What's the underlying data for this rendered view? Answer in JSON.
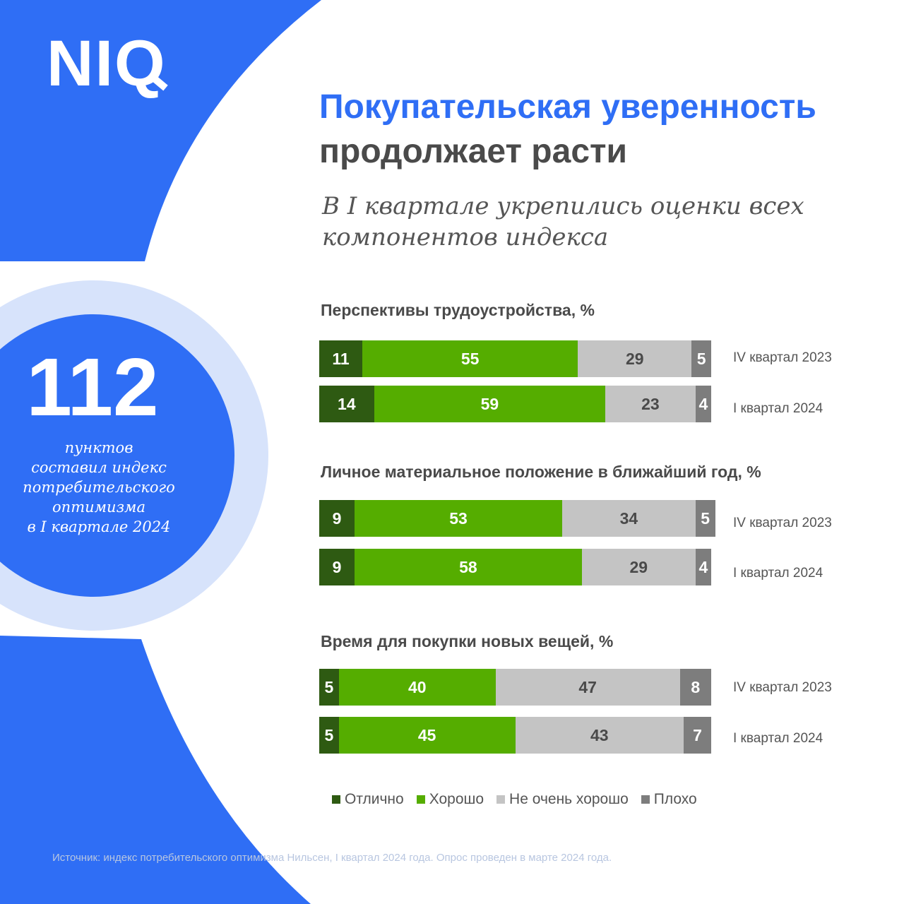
{
  "brand": {
    "logo": "NIQ"
  },
  "colors": {
    "brand_blue": "#2f6ef5",
    "ring_light": "#d7e3fb",
    "excellent": "#2e5a12",
    "good": "#55ad00",
    "not_very_good": "#c4c4c4",
    "bad": "#7d7d7d"
  },
  "highlight": {
    "value": "112",
    "caption": [
      "пунктов",
      "составил индекс",
      "потребительского",
      "оптимизма",
      "в I квартале 2024"
    ]
  },
  "header": {
    "title_line1": "Покупательская уверенность",
    "title_line2": "продолжает расти",
    "subtitle_line1": "В I квартале укрепились оценки всех",
    "subtitle_line2": "компонентов индекса"
  },
  "chart_data": [
    {
      "type": "bar",
      "orientation": "horizontal",
      "stacked": true,
      "title": "Перспективы трудоустройства, %",
      "categories": [
        "IV квартал 2023",
        "I квартал 2024"
      ],
      "series": [
        {
          "name": "Отлично",
          "values": [
            11,
            14
          ]
        },
        {
          "name": "Хорошо",
          "values": [
            55,
            59
          ]
        },
        {
          "name": "Не очень хорошо",
          "values": [
            29,
            23
          ]
        },
        {
          "name": "Плохо",
          "values": [
            5,
            4
          ]
        }
      ]
    },
    {
      "type": "bar",
      "orientation": "horizontal",
      "stacked": true,
      "title": "Личное материальное положение в ближайший год, %",
      "categories": [
        "IV квартал 2023",
        "I квартал 2024"
      ],
      "series": [
        {
          "name": "Отлично",
          "values": [
            9,
            9
          ]
        },
        {
          "name": "Хорошо",
          "values": [
            53,
            58
          ]
        },
        {
          "name": "Не очень хорошо",
          "values": [
            34,
            29
          ]
        },
        {
          "name": "Плохо",
          "values": [
            5,
            4
          ]
        }
      ]
    },
    {
      "type": "bar",
      "orientation": "horizontal",
      "stacked": true,
      "title": "Время для покупки новых вещей, %",
      "categories": [
        "IV квартал 2023",
        "I квартал 2024"
      ],
      "series": [
        {
          "name": "Отлично",
          "values": [
            5,
            5
          ]
        },
        {
          "name": "Хорошо",
          "values": [
            40,
            45
          ]
        },
        {
          "name": "Не очень хорошо",
          "values": [
            47,
            43
          ]
        },
        {
          "name": "Плохо",
          "values": [
            8,
            7
          ]
        }
      ]
    }
  ],
  "legend": [
    {
      "label": "Отлично",
      "color": "#2e5a12"
    },
    {
      "label": "Хорошо",
      "color": "#55ad00"
    },
    {
      "label": "Не очень хорошо",
      "color": "#c4c4c4"
    },
    {
      "label": "Плохо",
      "color": "#7d7d7d"
    }
  ],
  "footer": {
    "source": "Источник: индекс потребительского оптимизма Нильсен, I квартал 2024 года. Опрос проведен в марте 2024 года."
  }
}
